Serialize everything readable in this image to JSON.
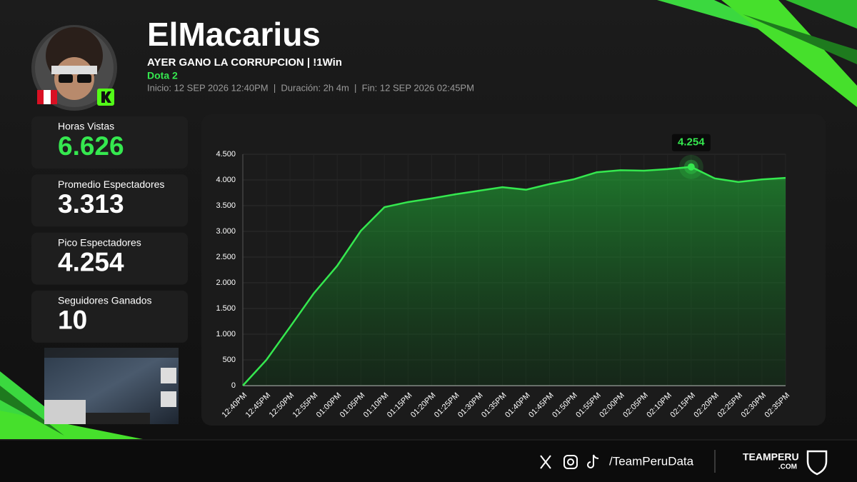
{
  "header": {
    "name": "ElMacarius",
    "stream_title": "AYER GANO LA CORRUPCION | !1Win",
    "game": "Dota 2",
    "meta": "Inicio: 12 SEP 2026 12:40PM  |  Duración: 2h 4m  |  Fin: 12 SEP 2026 02:45PM"
  },
  "stats": [
    {
      "label": "Horas Vistas",
      "value": "6.626"
    },
    {
      "label": "Promedio Espectadores",
      "value": "3.313"
    },
    {
      "label": "Pico Espectadores",
      "value": "4.254"
    },
    {
      "label": "Seguidores Ganados",
      "value": "10"
    }
  ],
  "footer": {
    "handle": "/TeamPeruData",
    "brand": "TEAMPERU",
    "brand_suffix": ".COM"
  },
  "chart_data": {
    "type": "line",
    "categories": [
      "12:40PM",
      "12:45PM",
      "12:50PM",
      "12:55PM",
      "01:00PM",
      "01:05PM",
      "01:10PM",
      "01:15PM",
      "01:20PM",
      "01:25PM",
      "01:30PM",
      "01:35PM",
      "01:40PM",
      "01:45PM",
      "01:50PM",
      "01:55PM",
      "02:00PM",
      "02:05PM",
      "02:10PM",
      "02:15PM",
      "02:20PM",
      "02:25PM",
      "02:30PM",
      "02:35PM"
    ],
    "values": [
      0,
      500,
      1140,
      1790,
      2330,
      3010,
      3470,
      3570,
      3640,
      3720,
      3790,
      3860,
      3810,
      3920,
      4010,
      4150,
      4190,
      4180,
      4210,
      4254,
      4030,
      3960,
      4010,
      4040
    ],
    "color": "#35e84f",
    "ylim": [
      0,
      4500
    ],
    "yticks": [
      0,
      500,
      {
        "value": 1000,
        "label": "1.000"
      },
      {
        "value": 1500,
        "label": "1.500"
      },
      {
        "value": 2000,
        "label": "2.000"
      },
      {
        "value": 2500,
        "label": "2.500"
      },
      {
        "value": 3000,
        "label": "3.000"
      },
      {
        "value": 3500,
        "label": "3.500"
      },
      {
        "value": 4000,
        "label": "4.000"
      },
      {
        "value": 4500,
        "label": "4.500"
      }
    ],
    "grid": true,
    "annotation": {
      "x": "02:15PM",
      "label": "4.254"
    }
  }
}
